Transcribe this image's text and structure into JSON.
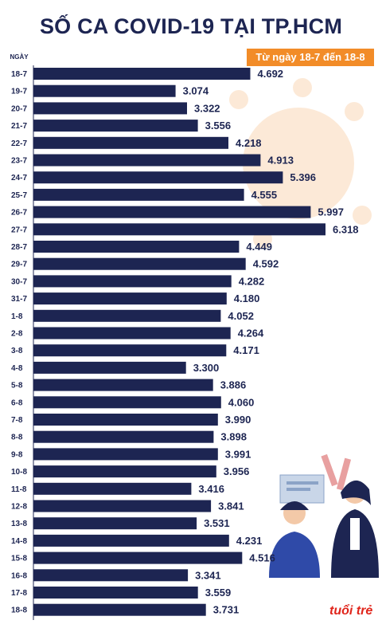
{
  "chart_data": {
    "type": "bar",
    "orientation": "horizontal",
    "title": "SỐ CA COVID-19 TẠI TP.HCM",
    "subtitle": "Từ ngày 18-7 đến 18-8",
    "ylabel": "NGÀY",
    "categories": [
      "18-7",
      "19-7",
      "20-7",
      "21-7",
      "22-7",
      "23-7",
      "24-7",
      "25-7",
      "26-7",
      "27-7",
      "28-7",
      "29-7",
      "30-7",
      "31-7",
      "1-8",
      "2-8",
      "3-8",
      "4-8",
      "5-8",
      "6-8",
      "7-8",
      "8-8",
      "9-8",
      "10-8",
      "11-8",
      "12-8",
      "13-8",
      "14-8",
      "15-8",
      "16-8",
      "17-8",
      "18-8"
    ],
    "values": [
      4692,
      3074,
      3322,
      3556,
      4218,
      4913,
      5396,
      4555,
      5997,
      6318,
      4449,
      4592,
      4282,
      4180,
      4052,
      4264,
      4171,
      3300,
      3886,
      4060,
      3990,
      3898,
      3991,
      3956,
      3416,
      3841,
      3531,
      4231,
      4516,
      3341,
      3559,
      3731
    ],
    "value_labels": [
      "4.692",
      "3.074",
      "3.322",
      "3.556",
      "4.218",
      "4.913",
      "5.396",
      "4.555",
      "5.997",
      "6.318",
      "4.449",
      "4.592",
      "4.282",
      "4.180",
      "4.052",
      "4.264",
      "4.171",
      "3.300",
      "3.886",
      "4.060",
      "3.990",
      "3.898",
      "3.991",
      "3.956",
      "3.416",
      "3.841",
      "3.531",
      "4.231",
      "4.516",
      "3.341",
      "3.559",
      "3.731"
    ],
    "xlim": [
      0,
      6318
    ],
    "grid": false,
    "bar_color": "#1d2552"
  },
  "logo": "tuổi trẻ"
}
